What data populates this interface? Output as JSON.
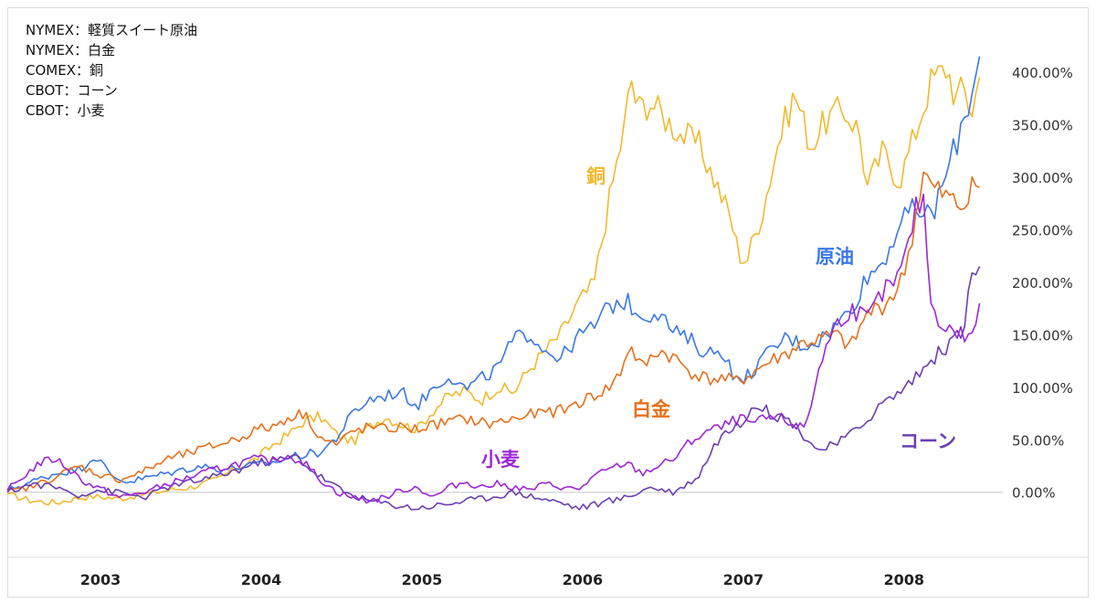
{
  "chart_data": {
    "type": "line",
    "title": "",
    "xlabel": "",
    "ylabel": "",
    "legend": [
      "NYMEX：軽質スイート原油",
      "NYMEX：白金",
      "COMEX：銅",
      "CBOT：コーン",
      "CBOT：小麦"
    ],
    "x_ticks": [
      "2003",
      "2004",
      "2005",
      "2006",
      "2007",
      "2008"
    ],
    "x_range": [
      2002.45,
      2008.52
    ],
    "y_ticks": [
      "400.00%",
      "350.00%",
      "300.00%",
      "250.00%",
      "200.00%",
      "150.00%",
      "100.00%",
      "50.00%",
      "0.00%"
    ],
    "ylim": [
      -62,
      420
    ],
    "grid": false,
    "series": [
      {
        "name": "銅",
        "label": "銅",
        "color": "#f2b92d",
        "x": [
          2002.45,
          2002.6,
          2002.75,
          2002.9,
          2003.0,
          2003.15,
          2003.3,
          2003.45,
          2003.6,
          2003.75,
          2003.9,
          2004.0,
          2004.1,
          2004.2,
          2004.3,
          2004.4,
          2004.5,
          2004.6,
          2004.7,
          2004.8,
          2004.9,
          2005.0,
          2005.1,
          2005.2,
          2005.3,
          2005.4,
          2005.5,
          2005.6,
          2005.7,
          2005.8,
          2005.9,
          2006.0,
          2006.1,
          2006.2,
          2006.3,
          2006.33,
          2006.37,
          2006.45,
          2006.55,
          2006.65,
          2006.75,
          2006.85,
          2006.95,
          2007.0,
          2007.05,
          2007.15,
          2007.25,
          2007.35,
          2007.45,
          2007.55,
          2007.65,
          2007.75,
          2007.8,
          2007.9,
          2008.0,
          2008.1,
          2008.2,
          2008.3,
          2008.35,
          2008.4,
          2008.45,
          2008.5
        ],
        "values": [
          -2,
          -8,
          -10,
          -5,
          -4,
          -6,
          -2,
          2,
          5,
          12,
          25,
          32,
          45,
          55,
          68,
          72,
          55,
          48,
          62,
          72,
          65,
          60,
          78,
          92,
          96,
          88,
          100,
          95,
          118,
          135,
          152,
          180,
          198,
          282,
          355,
          398,
          365,
          372,
          355,
          340,
          332,
          298,
          262,
          228,
          220,
          268,
          335,
          380,
          330,
          355,
          365,
          345,
          290,
          325,
          296,
          342,
          392,
          405,
          375,
          385,
          362,
          395
        ]
      },
      {
        "name": "原油",
        "label": "原油",
        "color": "#3b78e7",
        "x": [
          2002.45,
          2002.6,
          2002.75,
          2002.9,
          2003.0,
          2003.1,
          2003.2,
          2003.35,
          2003.5,
          2003.65,
          2003.8,
          2003.95,
          2004.1,
          2004.25,
          2004.4,
          2004.5,
          2004.6,
          2004.7,
          2004.8,
          2004.9,
          2005.0,
          2005.1,
          2005.2,
          2005.3,
          2005.4,
          2005.5,
          2005.6,
          2005.7,
          2005.8,
          2005.9,
          2006.0,
          2006.1,
          2006.2,
          2006.3,
          2006.4,
          2006.5,
          2006.6,
          2006.7,
          2006.8,
          2006.9,
          2007.0,
          2007.1,
          2007.2,
          2007.3,
          2007.4,
          2007.5,
          2007.6,
          2007.7,
          2007.8,
          2007.9,
          2008.0,
          2008.1,
          2008.2,
          2008.3,
          2008.4,
          2008.45,
          2008.5
        ],
        "values": [
          2,
          10,
          18,
          22,
          35,
          15,
          10,
          15,
          20,
          25,
          22,
          25,
          28,
          35,
          38,
          52,
          75,
          88,
          92,
          96,
          82,
          100,
          112,
          98,
          108,
          118,
          145,
          152,
          135,
          128,
          148,
          158,
          178,
          182,
          168,
          172,
          152,
          145,
          132,
          136,
          102,
          118,
          135,
          148,
          140,
          145,
          158,
          175,
          205,
          220,
          255,
          270,
          262,
          305,
          355,
          380,
          415
        ]
      },
      {
        "name": "白金",
        "label": "白金",
        "color": "#e8701a",
        "x": [
          2002.45,
          2002.6,
          2002.75,
          2002.9,
          2003.0,
          2003.15,
          2003.3,
          2003.45,
          2003.6,
          2003.75,
          2003.9,
          2004.0,
          2004.1,
          2004.2,
          2004.3,
          2004.4,
          2004.5,
          2004.6,
          2004.7,
          2004.8,
          2004.9,
          2005.0,
          2005.15,
          2005.3,
          2005.45,
          2005.6,
          2005.75,
          2005.9,
          2006.0,
          2006.1,
          2006.2,
          2006.27,
          2006.32,
          2006.4,
          2006.5,
          2006.6,
          2006.7,
          2006.8,
          2006.9,
          2007.0,
          2007.1,
          2007.2,
          2007.3,
          2007.4,
          2007.5,
          2007.6,
          2007.7,
          2007.8,
          2007.9,
          2008.0,
          2008.05,
          2008.1,
          2008.15,
          2008.2,
          2008.3,
          2008.4,
          2008.45,
          2008.5
        ],
        "values": [
          0,
          5,
          15,
          25,
          18,
          12,
          20,
          32,
          38,
          45,
          52,
          60,
          62,
          72,
          75,
          52,
          45,
          58,
          62,
          60,
          62,
          60,
          66,
          70,
          65,
          70,
          75,
          78,
          85,
          92,
          100,
          115,
          140,
          118,
          135,
          128,
          115,
          108,
          108,
          105,
          115,
          125,
          132,
          142,
          145,
          150,
          138,
          170,
          178,
          195,
          220,
          260,
          305,
          290,
          280,
          270,
          300,
          290
        ]
      },
      {
        "name": "コーン",
        "label": "コーン",
        "color": "#6a3fb3",
        "x": [
          2002.45,
          2002.6,
          2002.75,
          2002.9,
          2003.0,
          2003.15,
          2003.3,
          2003.45,
          2003.6,
          2003.75,
          2003.9,
          2004.0,
          2004.1,
          2004.2,
          2004.25,
          2004.35,
          2004.45,
          2004.55,
          2004.7,
          2004.85,
          2005.0,
          2005.15,
          2005.3,
          2005.45,
          2005.6,
          2005.75,
          2005.9,
          2006.0,
          2006.15,
          2006.3,
          2006.45,
          2006.6,
          2006.75,
          2006.85,
          2006.9,
          2006.95,
          2007.0,
          2007.05,
          2007.1,
          2007.2,
          2007.3,
          2007.35,
          2007.4,
          2007.5,
          2007.6,
          2007.7,
          2007.8,
          2007.9,
          2008.0,
          2008.1,
          2008.2,
          2008.3,
          2008.4,
          2008.45,
          2008.5
        ],
        "values": [
          0,
          8,
          5,
          -3,
          2,
          0,
          -5,
          5,
          10,
          15,
          22,
          28,
          30,
          32,
          35,
          20,
          10,
          0,
          -8,
          -12,
          -15,
          -12,
          -8,
          -5,
          0,
          -5,
          -10,
          -15,
          -10,
          -5,
          5,
          0,
          15,
          45,
          55,
          60,
          62,
          75,
          85,
          75,
          70,
          65,
          55,
          40,
          45,
          55,
          70,
          85,
          95,
          110,
          125,
          140,
          155,
          205,
          215
        ]
      },
      {
        "name": "小麦",
        "label": "小麦",
        "color": "#9c27d8",
        "x": [
          2002.45,
          2002.55,
          2002.65,
          2002.75,
          2002.85,
          2002.95,
          2003.05,
          2003.15,
          2003.3,
          2003.45,
          2003.6,
          2003.75,
          2003.9,
          2004.0,
          2004.1,
          2004.2,
          2004.3,
          2004.4,
          2004.5,
          2004.6,
          2004.7,
          2004.8,
          2004.9,
          2005.0,
          2005.1,
          2005.2,
          2005.3,
          2005.4,
          2005.5,
          2005.6,
          2005.7,
          2005.8,
          2005.9,
          2006.0,
          2006.1,
          2006.2,
          2006.3,
          2006.4,
          2006.5,
          2006.6,
          2006.7,
          2006.8,
          2006.9,
          2007.0,
          2007.1,
          2007.2,
          2007.3,
          2007.4,
          2007.45,
          2007.5,
          2007.6,
          2007.7,
          2007.8,
          2007.9,
          2008.0,
          2008.05,
          2008.1,
          2008.15,
          2008.2,
          2008.3,
          2008.4,
          2008.45,
          2008.5
        ],
        "values": [
          2,
          15,
          28,
          32,
          20,
          8,
          2,
          -5,
          0,
          8,
          15,
          22,
          28,
          32,
          30,
          35,
          28,
          12,
          0,
          -5,
          -8,
          -5,
          2,
          5,
          -5,
          5,
          10,
          5,
          8,
          5,
          2,
          8,
          5,
          2,
          15,
          22,
          28,
          18,
          25,
          32,
          48,
          58,
          62,
          70,
          65,
          72,
          68,
          60,
          80,
          120,
          158,
          175,
          165,
          190,
          205,
          230,
          268,
          280,
          175,
          155,
          150,
          145,
          180
        ]
      }
    ]
  }
}
